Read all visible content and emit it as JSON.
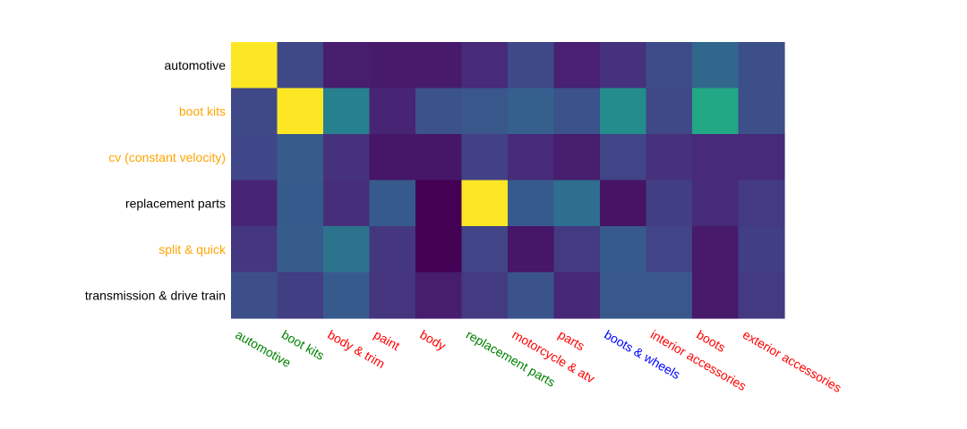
{
  "chart_data": {
    "type": "heatmap",
    "title": "",
    "xlabel": "",
    "ylabel": "",
    "colorscale": "viridis",
    "zlim": [
      0,
      1
    ],
    "x": [
      {
        "label": "automotive",
        "color": "#008000"
      },
      {
        "label": "boot kits",
        "color": "#008000"
      },
      {
        "label": "body & trim",
        "color": "#ff0000"
      },
      {
        "label": "paint",
        "color": "#ff0000"
      },
      {
        "label": "body",
        "color": "#ff0000"
      },
      {
        "label": "replacement parts",
        "color": "#008000"
      },
      {
        "label": "motorcycle & atv",
        "color": "#ff0000"
      },
      {
        "label": "parts",
        "color": "#ff0000"
      },
      {
        "label": "boots & wheels",
        "color": "#0000ff"
      },
      {
        "label": "interior accessories",
        "color": "#ff0000"
      },
      {
        "label": "boots",
        "color": "#ff0000"
      },
      {
        "label": "exterior accessories",
        "color": "#ff0000"
      }
    ],
    "y": [
      {
        "label": "automotive",
        "color": "#000000"
      },
      {
        "label": "boot kits",
        "color": "#ffa500"
      },
      {
        "label": "cv (constant velocity)",
        "color": "#ffa500"
      },
      {
        "label": "replacement parts",
        "color": "#000000"
      },
      {
        "label": "split & quick",
        "color": "#ffa500"
      },
      {
        "label": "transmission & drive train",
        "color": "#000000"
      }
    ],
    "z": [
      [
        1.0,
        0.22,
        0.08,
        0.07,
        0.07,
        0.12,
        0.22,
        0.09,
        0.14,
        0.23,
        0.33,
        0.24
      ],
      [
        0.22,
        1.0,
        0.43,
        0.1,
        0.25,
        0.27,
        0.3,
        0.25,
        0.48,
        0.22,
        0.6,
        0.24
      ],
      [
        0.21,
        0.29,
        0.14,
        0.06,
        0.06,
        0.19,
        0.12,
        0.08,
        0.2,
        0.14,
        0.12,
        0.12
      ],
      [
        0.1,
        0.28,
        0.13,
        0.28,
        0.0,
        1.0,
        0.28,
        0.36,
        0.05,
        0.18,
        0.12,
        0.17
      ],
      [
        0.16,
        0.29,
        0.38,
        0.16,
        0.0,
        0.2,
        0.06,
        0.17,
        0.28,
        0.2,
        0.07,
        0.18
      ],
      [
        0.24,
        0.18,
        0.28,
        0.15,
        0.08,
        0.17,
        0.26,
        0.11,
        0.27,
        0.27,
        0.07,
        0.17
      ]
    ]
  }
}
